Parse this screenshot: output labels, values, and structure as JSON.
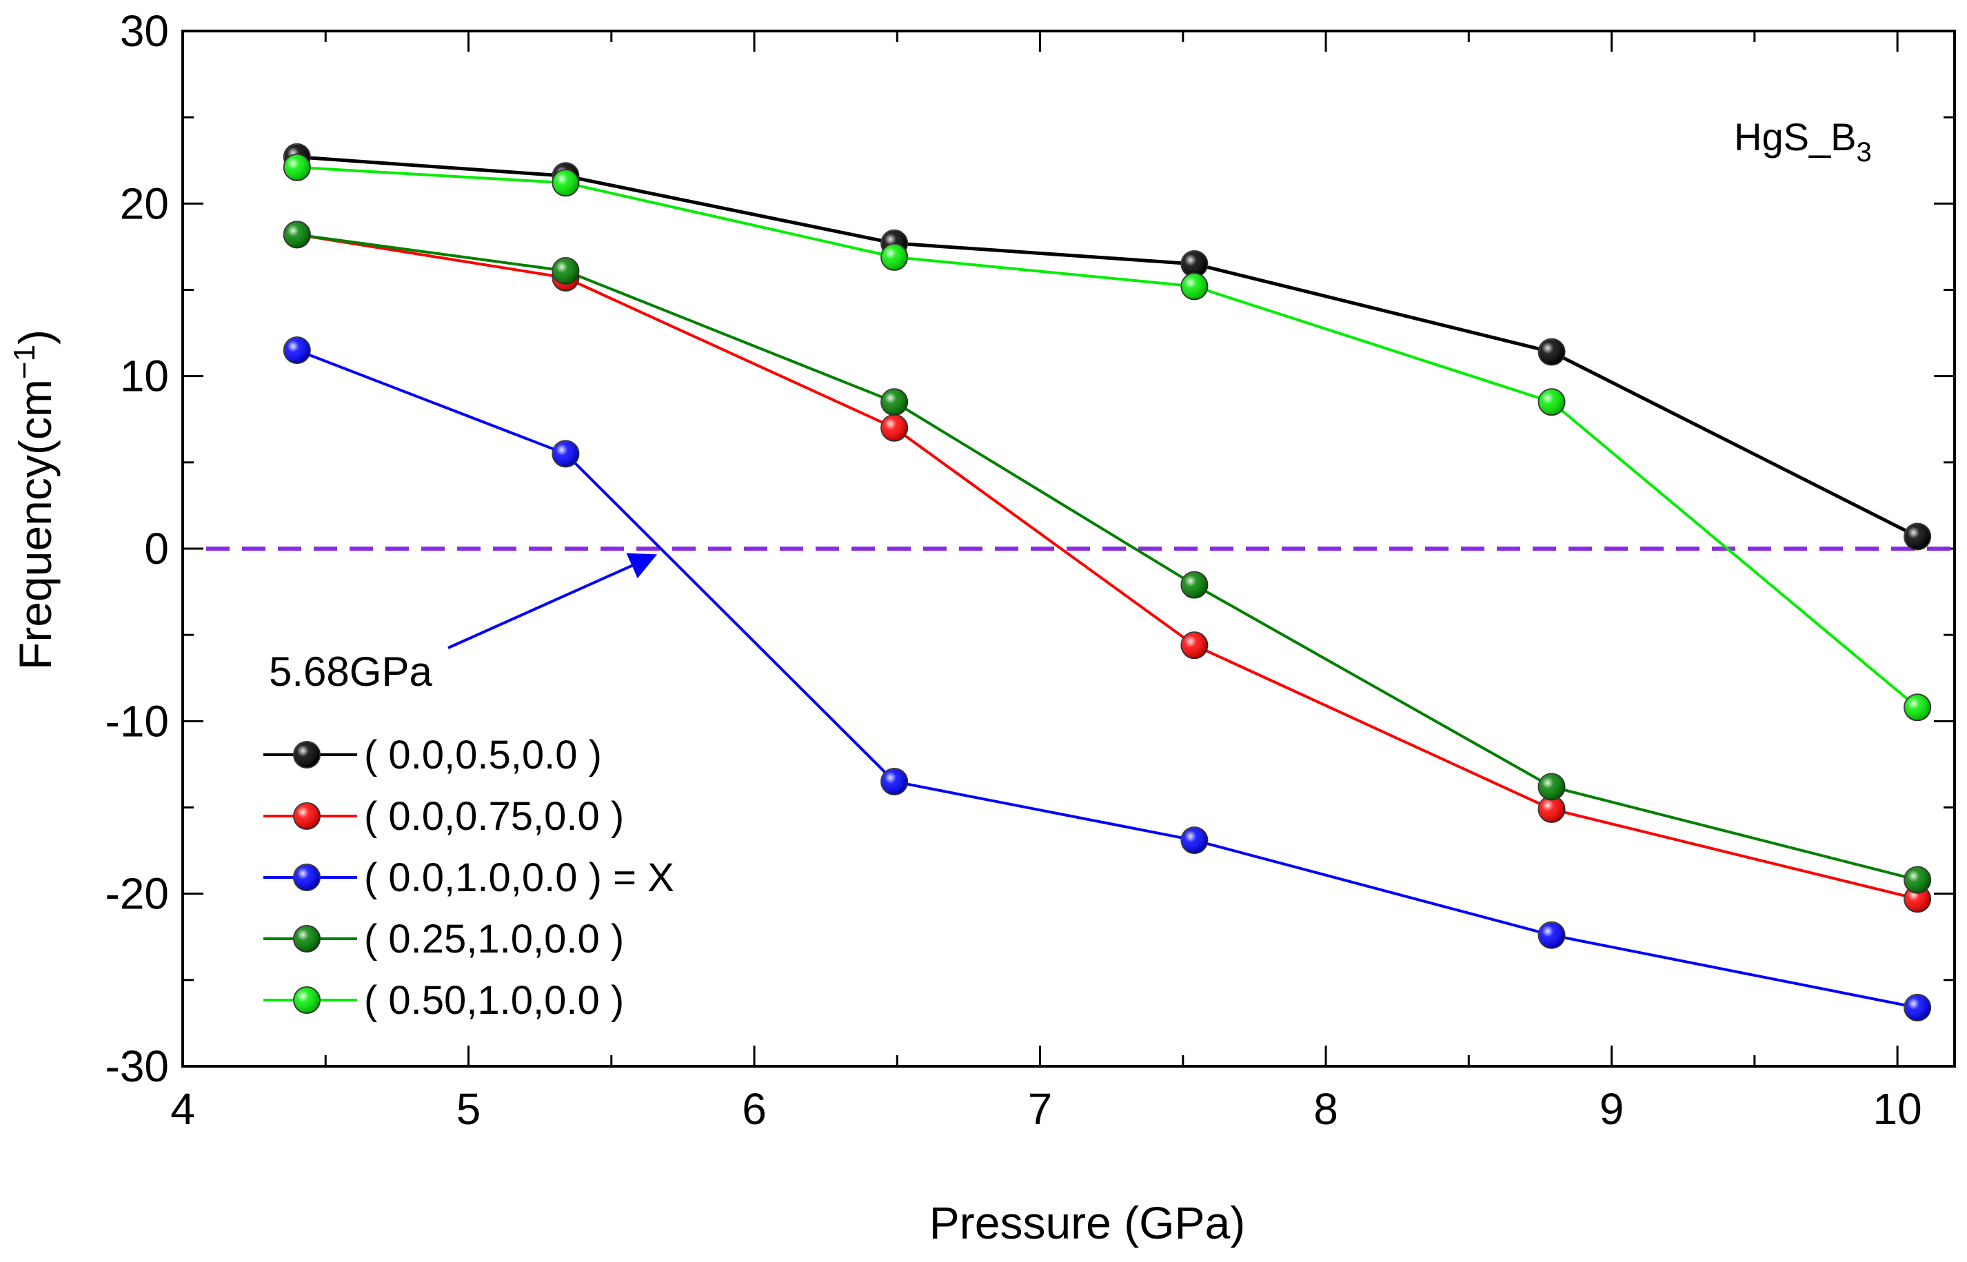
{
  "chart_data": {
    "type": "line",
    "title": "HgS_B",
    "title_subscript": "3",
    "xlabel": "Pressure (GPa)",
    "ylabel": "Frequency(cm",
    "ylabel_unit_exp": "−1",
    "ylabel_close": ")",
    "xlim": [
      4,
      10.2
    ],
    "ylim": [
      -30,
      30
    ],
    "xticks": [
      4,
      5,
      6,
      7,
      8,
      9,
      10
    ],
    "xtick_labels": [
      "4",
      "5",
      "6",
      "7",
      "8",
      "9",
      "10"
    ],
    "yticks": [
      -30,
      -20,
      -10,
      0,
      10,
      20,
      30
    ],
    "ytick_labels": [
      "-30",
      "-20",
      "-10",
      "0",
      "10",
      "20",
      "30"
    ],
    "x": [
      4.4,
      5.34,
      6.49,
      7.54,
      8.79,
      10.07
    ],
    "series": [
      {
        "name": "( 0.0,0.5,0.0 )",
        "color": "#000000",
        "values": [
          22.7,
          21.6,
          17.7,
          16.5,
          11.4,
          0.7
        ]
      },
      {
        "name": "( 0.0,0.75,0.0 )",
        "color": "#ff0000",
        "values": [
          18.2,
          15.7,
          7.0,
          -5.6,
          -15.1,
          -20.3
        ]
      },
      {
        "name": "( 0.0,1.0,0.0 ) = X",
        "color": "#0000ff",
        "values": [
          11.5,
          5.5,
          -13.5,
          -16.9,
          -22.4,
          -26.6
        ]
      },
      {
        "name": "( 0.25,1.0,0.0 )",
        "color": "#008000",
        "values": [
          18.2,
          16.1,
          8.5,
          -2.1,
          -13.8,
          -19.2
        ]
      },
      {
        "name": "( 0.50,1.0,0.0 )",
        "color": "#00ee00",
        "values": [
          22.1,
          21.2,
          16.9,
          15.2,
          8.5,
          -9.2
        ]
      }
    ],
    "reference_line": {
      "y": 0,
      "color": "#8a2be2",
      "style": "dashed"
    },
    "annotations": [
      {
        "text": "5.68GPa",
        "color": "#0000ff",
        "target_x": 5.68,
        "target_y": 0
      }
    ],
    "legend_position": "bottom-left",
    "grid": false
  }
}
